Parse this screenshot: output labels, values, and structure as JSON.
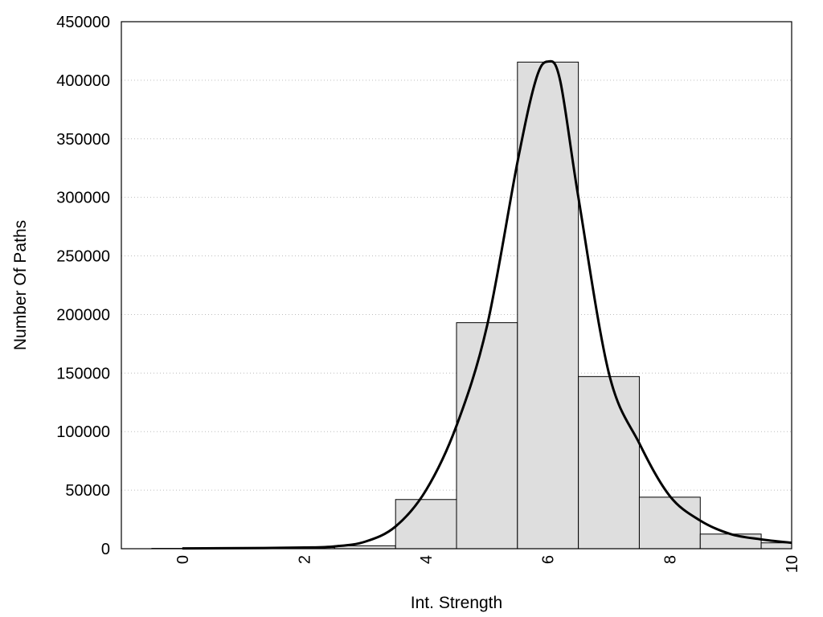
{
  "chart_data": {
    "type": "bar",
    "xlabel": "Int. Strength",
    "ylabel": "Number Of Paths",
    "xlim": [
      -1,
      10
    ],
    "ylim": [
      0,
      450000
    ],
    "grid": "horizontal-dotted",
    "legend": "none",
    "x_ticks": [
      "0",
      "2",
      "4",
      "6",
      "8",
      "10"
    ],
    "y_ticks": [
      "0",
      "50000",
      "100000",
      "150000",
      "200000",
      "250000",
      "300000",
      "350000",
      "400000",
      "450000"
    ],
    "bin_width": 1,
    "bars": {
      "x": [
        0,
        1,
        2,
        3,
        4,
        5,
        6,
        7,
        8,
        9,
        10
      ],
      "values": [
        300,
        500,
        1000,
        2500,
        42000,
        193000,
        415500,
        147000,
        44000,
        12500,
        5000
      ]
    },
    "curve": {
      "type": "line",
      "x": [
        0,
        1,
        2,
        2.5,
        3,
        3.5,
        4,
        4.5,
        5,
        5.5,
        5.8,
        6,
        6.2,
        6.5,
        7,
        7.5,
        8,
        8.5,
        9,
        9.5,
        10
      ],
      "values": [
        300,
        500,
        1000,
        2000,
        6000,
        19000,
        50000,
        105000,
        190000,
        330000,
        400000,
        416000,
        400000,
        300000,
        150000,
        90000,
        45000,
        24000,
        12500,
        8000,
        5000
      ]
    },
    "colors": {
      "bar_fill": "#dedede",
      "bar_stroke": "#000000",
      "curve": "#000000",
      "grid": "#bdbdbd"
    }
  }
}
